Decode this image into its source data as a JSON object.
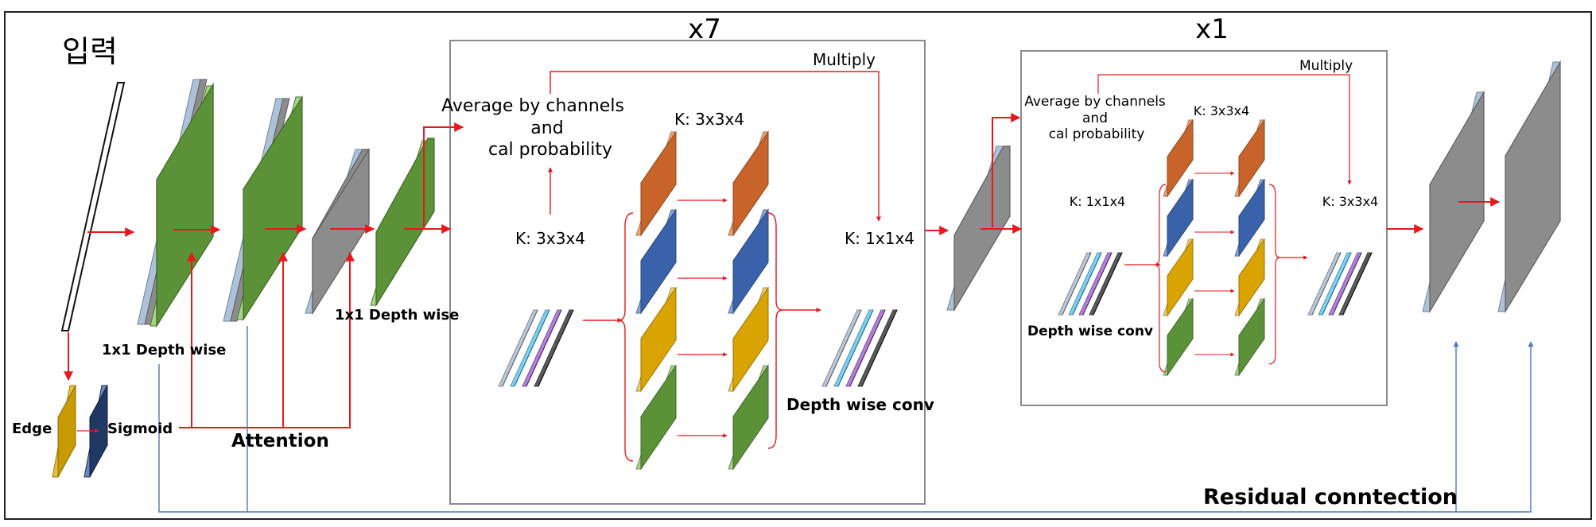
{
  "labels": {
    "input": "입력",
    "x7": "x7",
    "x1": "x1",
    "multiply": "Multiply",
    "avg_line1": "Average by channels",
    "avg_line2": "and",
    "avg_line3": "cal probability",
    "k_3x3x4": "K: 3x3x4",
    "k_1x1x4": "K: 1x1x4",
    "dw_1x1_a": "1x1 Depth wise",
    "dw_1x1_b": "1x1 Depth wise",
    "depth_wise_conv": "Depth wise conv",
    "edge": "Edge",
    "sigmoid": "Sigmoid",
    "attention": "Attention",
    "residual": "Residual conntection"
  },
  "colors": {
    "arrow_red": "#e8191d",
    "residual_blue": "#4a76c8",
    "gray_face": "#8c8c8c",
    "light_gray_face": "#d9d9d9",
    "light_blue_edge": "#adc1d8",
    "green": "#5b9237",
    "green_edge": "#a9d18e",
    "orange": "#c8642a",
    "blue": "#3a62aa",
    "yellow": "#d9a400",
    "green2": "#5b9237",
    "cyan": "#1ea5dd",
    "purple": "#7030a0",
    "black": "#0a0a0a",
    "edge_yellow": "#c79a00",
    "navy": "#1f3864",
    "box_border": "#808080"
  }
}
